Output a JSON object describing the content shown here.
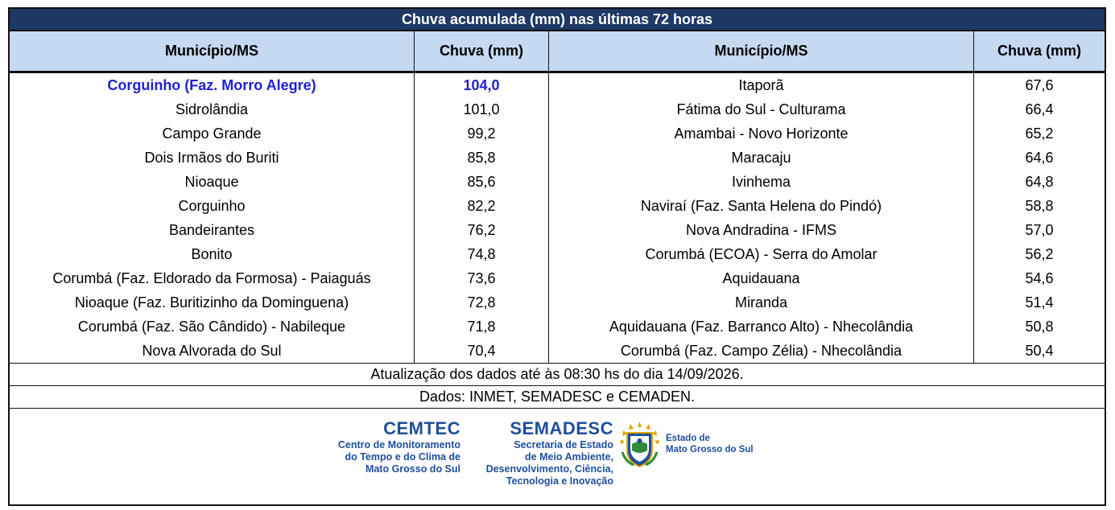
{
  "table": {
    "title": "Chuva acumulada (mm) nas últimas 72 horas",
    "headers": [
      "Município/MS",
      "Chuva (mm)",
      "Município/MS",
      "Chuva (mm)"
    ],
    "rows": [
      {
        "left_city": "Corguinho (Faz. Morro Alegre)",
        "left_value": "104,0",
        "right_city": "Itaporã",
        "right_value": "67,6"
      },
      {
        "left_city": "Sidrolândia",
        "left_value": "101,0",
        "right_city": "Fátima do Sul - Culturama",
        "right_value": "66,4"
      },
      {
        "left_city": "Campo Grande",
        "left_value": "99,2",
        "right_city": "Amambai - Novo Horizonte",
        "right_value": "65,2"
      },
      {
        "left_city": "Dois Irmãos do Buriti",
        "left_value": "85,8",
        "right_city": "Maracaju",
        "right_value": "64,6"
      },
      {
        "left_city": "Nioaque",
        "left_value": "85,6",
        "right_city": "Ivinhema",
        "right_value": "64,8"
      },
      {
        "left_city": "Corguinho",
        "left_value": "82,2",
        "right_city": "Naviraí (Faz. Santa Helena do Pindó)",
        "right_value": "58,8"
      },
      {
        "left_city": "Bandeirantes",
        "left_value": "76,2",
        "right_city": "Nova Andradina - IFMS",
        "right_value": "57,0"
      },
      {
        "left_city": "Bonito",
        "left_value": "74,8",
        "right_city": "Corumbá (ECOA) - Serra do Amolar",
        "right_value": "56,2"
      },
      {
        "left_city": "Corumbá (Faz. Eldorado da Formosa) - Paiaguás",
        "left_value": "73,6",
        "right_city": "Aquidauana",
        "right_value": "54,6"
      },
      {
        "left_city": "Nioaque (Faz. Buritizinho da Dominguena)",
        "left_value": "72,8",
        "right_city": "Miranda",
        "right_value": "51,4"
      },
      {
        "left_city": "Corumbá (Faz. São Cândido) - Nabileque",
        "left_value": "71,8",
        "right_city": "Aquidauana (Faz. Barranco Alto) - Nhecolândia",
        "right_value": "50,8"
      },
      {
        "left_city": "Nova Alvorada do Sul",
        "left_value": "70,4",
        "right_city": "Corumbá (Faz. Campo Zélia) - Nhecolândia",
        "right_value": "50,4"
      }
    ],
    "update_note": "Atualização dos dados até às 08:30 hs do dia 14/09/2026.",
    "sources_note": "Dados: INMET, SEMADESC e CEMADEN."
  },
  "logos": {
    "cemtec": {
      "name": "CEMTEC",
      "lines": [
        "Centro de Monitoramento",
        "do Tempo e do Clima de",
        "Mato Grosso do Sul"
      ]
    },
    "semadesc": {
      "name": "SEMADESC",
      "lines": [
        "Secretaria de Estado",
        "de Meio Ambiente,",
        "Desenvolvimento, Ciência,",
        "Tecnologia e Inovação"
      ]
    },
    "estado": {
      "lines": [
        "Estado de",
        "Mato Grosso do Sul"
      ]
    }
  },
  "colors": {
    "title_bg": "#1f3864",
    "header_bg": "#c5d9f1",
    "highlight_text": "#1f1fd6",
    "logo_blue": "#1f4e9c"
  }
}
